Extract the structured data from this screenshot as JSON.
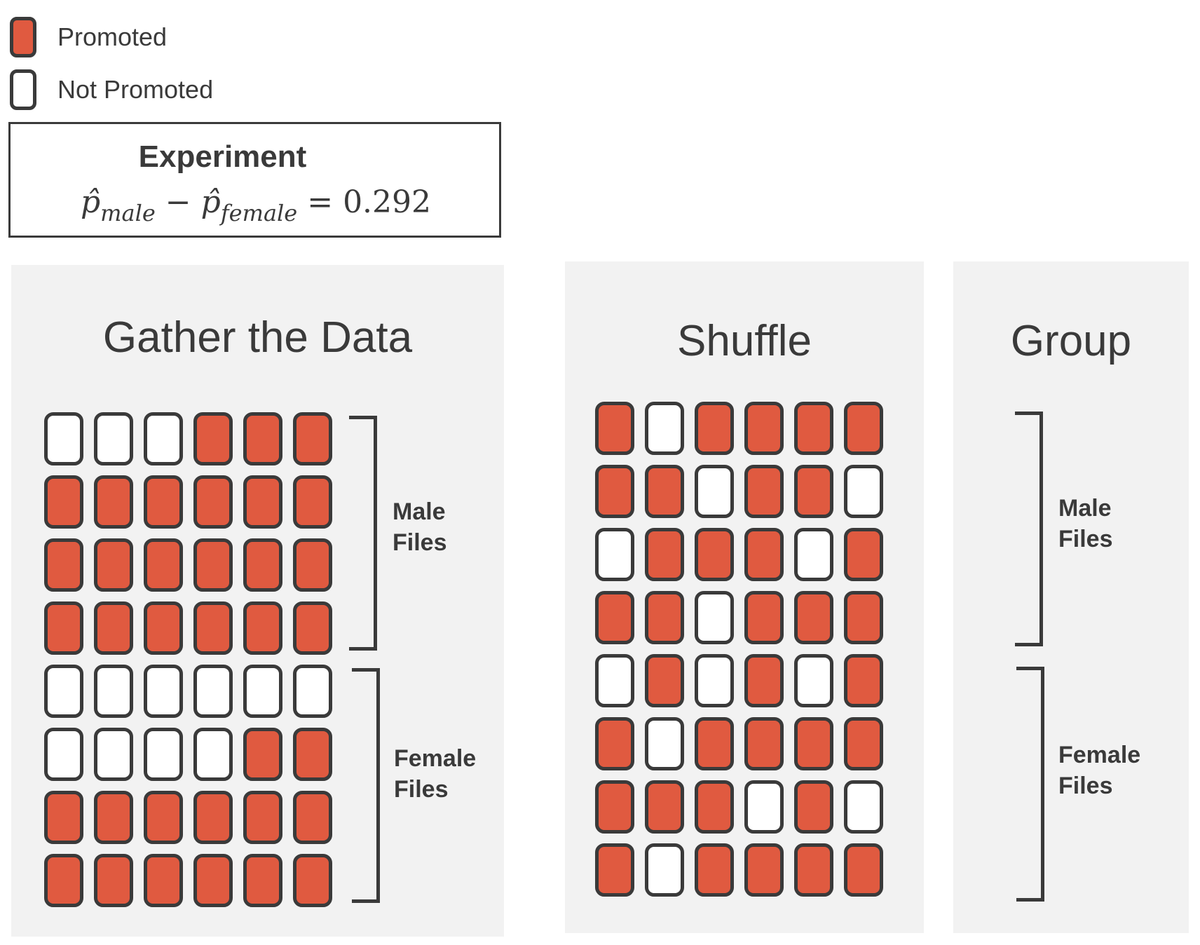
{
  "legend": {
    "promoted": {
      "label": "Promoted",
      "color": "#e05a40"
    },
    "not_promoted": {
      "label": "Not Promoted",
      "color": "#ffffff"
    }
  },
  "experiment": {
    "title": "Experiment",
    "formula": {
      "p_hat_symbol": "p̂",
      "male_subscript": "male",
      "minus": "−",
      "female_subscript": "female",
      "equals": "=",
      "value": "0.292"
    }
  },
  "panels": {
    "gather": {
      "title": "Gather the Data",
      "male_label_line1": "Male",
      "male_label_line2": "Files",
      "female_label_line1": "Female",
      "female_label_line2": "Files",
      "grid": [
        [
          0,
          0,
          0,
          1,
          1,
          1
        ],
        [
          1,
          1,
          1,
          1,
          1,
          1
        ],
        [
          1,
          1,
          1,
          1,
          1,
          1
        ],
        [
          1,
          1,
          1,
          1,
          1,
          1
        ],
        [
          0,
          0,
          0,
          0,
          0,
          0
        ],
        [
          0,
          0,
          0,
          0,
          1,
          1
        ],
        [
          1,
          1,
          1,
          1,
          1,
          1
        ],
        [
          1,
          1,
          1,
          1,
          1,
          1
        ]
      ]
    },
    "shuffle": {
      "title": "Shuffle",
      "grid": [
        [
          1,
          0,
          1,
          1,
          1,
          1
        ],
        [
          1,
          1,
          0,
          1,
          1,
          0
        ],
        [
          0,
          1,
          1,
          1,
          0,
          1
        ],
        [
          1,
          1,
          0,
          1,
          1,
          1
        ],
        [
          0,
          1,
          0,
          1,
          0,
          1
        ],
        [
          1,
          0,
          1,
          1,
          1,
          1
        ],
        [
          1,
          1,
          1,
          0,
          1,
          0
        ],
        [
          1,
          0,
          1,
          1,
          1,
          1
        ]
      ]
    },
    "group": {
      "title": "Group",
      "male_label_line1": "Male",
      "male_label_line2": "Files",
      "female_label_line1": "Female",
      "female_label_line2": "Files"
    }
  }
}
